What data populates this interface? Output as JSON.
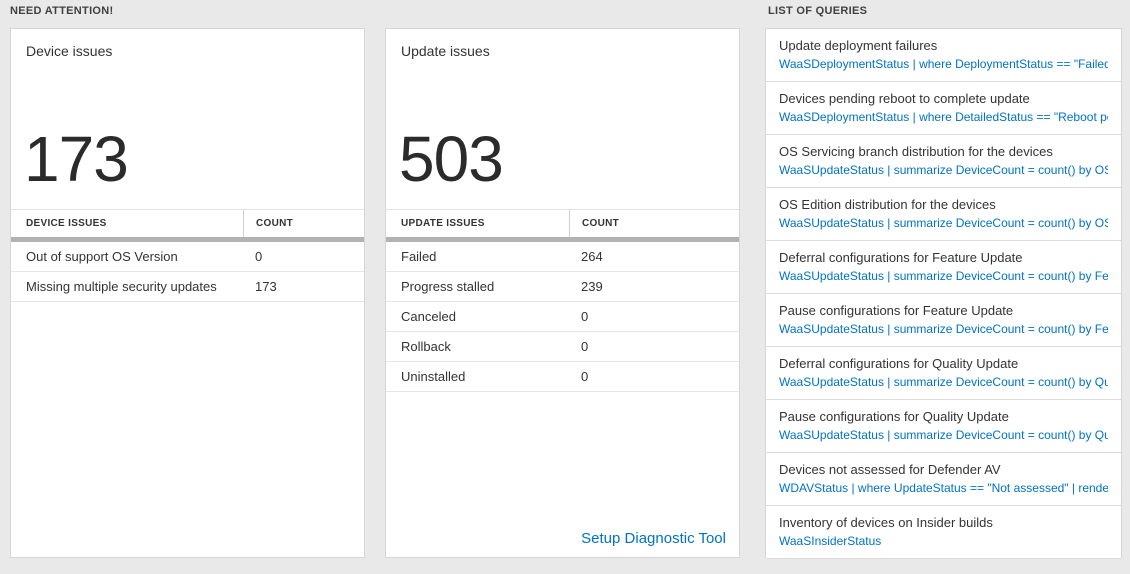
{
  "colors": {
    "accent_blue": "#0072c6",
    "page_background": "#e9e9e9",
    "header_bar_gray": "#b2b2b2"
  },
  "need_attention": {
    "title": "NEED ATTENTION!",
    "tiles": [
      {
        "title": "Device issues",
        "big_number": "173",
        "headers": {
          "label": "DEVICE ISSUES",
          "count": "COUNT"
        },
        "rows": [
          {
            "label": "Out of support OS Version",
            "count": "0"
          },
          {
            "label": "Missing multiple security updates",
            "count": "173"
          }
        ]
      },
      {
        "title": "Update issues",
        "big_number": "503",
        "headers": {
          "label": "UPDATE ISSUES",
          "count": "COUNT"
        },
        "rows": [
          {
            "label": "Failed",
            "count": "264"
          },
          {
            "label": "Progress stalled",
            "count": "239"
          },
          {
            "label": "Canceled",
            "count": "0"
          },
          {
            "label": "Rollback",
            "count": "0"
          },
          {
            "label": "Uninstalled",
            "count": "0"
          }
        ],
        "footer_link": "Setup Diagnostic Tool"
      }
    ]
  },
  "queries": {
    "title": "LIST OF QUERIES",
    "items": [
      {
        "title": "Update deployment failures",
        "query": "WaaSDeploymentStatus | where DeploymentStatus == \"Failed\" |..."
      },
      {
        "title": "Devices pending reboot to complete update",
        "query": "WaaSDeploymentStatus | where DetailedStatus == \"Reboot pend..."
      },
      {
        "title": "OS Servicing branch distribution for the devices",
        "query": "WaaSUpdateStatus | summarize DeviceCount = count() by OSSer..."
      },
      {
        "title": "OS Edition distribution for the devices",
        "query": "WaaSUpdateStatus | summarize DeviceCount = count() by OSEdit..."
      },
      {
        "title": "Deferral configurations for Feature Update",
        "query": "WaaSUpdateStatus | summarize DeviceCount = count() by Featur..."
      },
      {
        "title": "Pause configurations for Feature Update",
        "query": "WaaSUpdateStatus | summarize DeviceCount = count() by Featur..."
      },
      {
        "title": "Deferral configurations for Quality Update",
        "query": "WaaSUpdateStatus | summarize DeviceCount = count() by Qualit..."
      },
      {
        "title": "Pause configurations for Quality Update",
        "query": "WaaSUpdateStatus | summarize DeviceCount = count() by Qualit..."
      },
      {
        "title": "Devices not assessed for Defender AV",
        "query": "WDAVStatus | where UpdateStatus == \"Not assessed\" | render ta..."
      },
      {
        "title": "Inventory of devices on Insider builds",
        "query": "WaaSInsiderStatus"
      }
    ]
  }
}
